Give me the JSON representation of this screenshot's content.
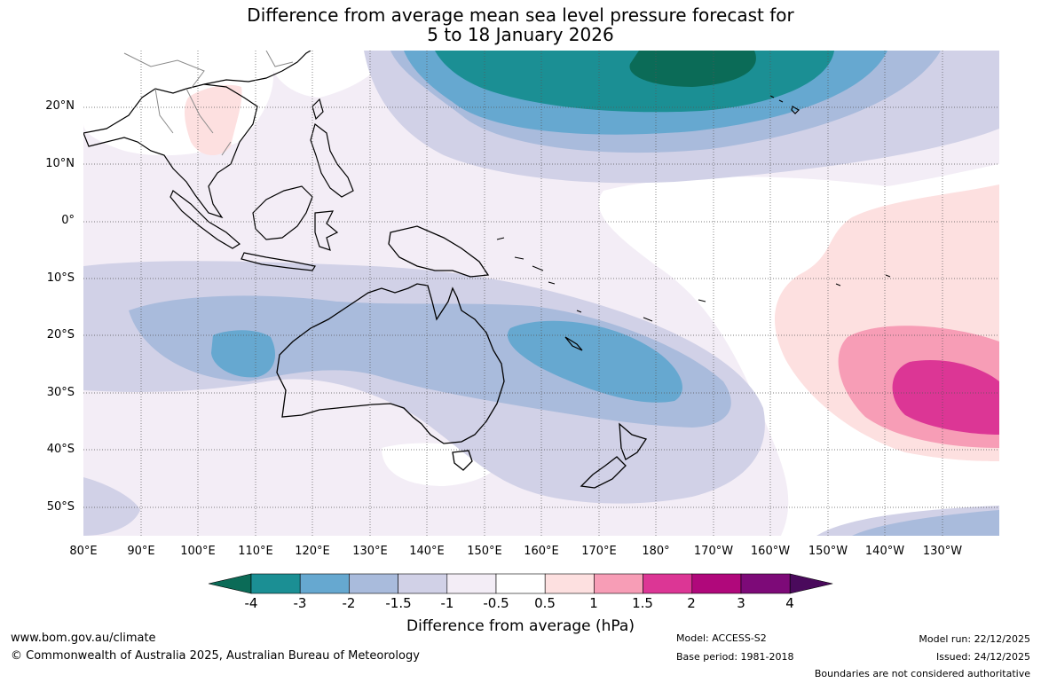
{
  "title_line1": "Difference from average mean sea level pressure forecast for",
  "title_line2": "5 to 18 January 2026",
  "lat_labels": [
    "20°N",
    "10°N",
    "0°",
    "10°S",
    "20°S",
    "30°S",
    "40°S",
    "50°S"
  ],
  "lon_labels": [
    "80°E",
    "90°E",
    "100°E",
    "110°E",
    "120°E",
    "130°E",
    "140°E",
    "150°E",
    "160°E",
    "170°E",
    "180°",
    "170°W",
    "160°W",
    "150°W",
    "140°W",
    "130°W"
  ],
  "colorbar": {
    "ticks": [
      "-4",
      "-3",
      "-2",
      "-1.5",
      "-1",
      "-0.5",
      "0.5",
      "1",
      "1.5",
      "2",
      "3",
      "4"
    ],
    "colors": [
      "#0b6b57",
      "#1b8f94",
      "#66a8d0",
      "#a9bbdc",
      "#d1d1e7",
      "#f3edf6",
      "#ffffff",
      "#fde0e0",
      "#f79db6",
      "#dc3695",
      "#b0087b",
      "#7d0a78",
      "#4a0a5c"
    ],
    "label": "Difference from average (hPa)"
  },
  "footer": {
    "website": "www.bom.gov.au/climate",
    "copyright": "© Commonwealth of Australia 2025, Australian Bureau of Meteorology",
    "model": "Model: ACCESS-S2",
    "base_period": "Base period: 1981-2018",
    "model_run": "Model run: 22/12/2025",
    "issued": "Issued: 24/12/2025",
    "disclaimer": "Boundaries are not considered authoritative"
  }
}
